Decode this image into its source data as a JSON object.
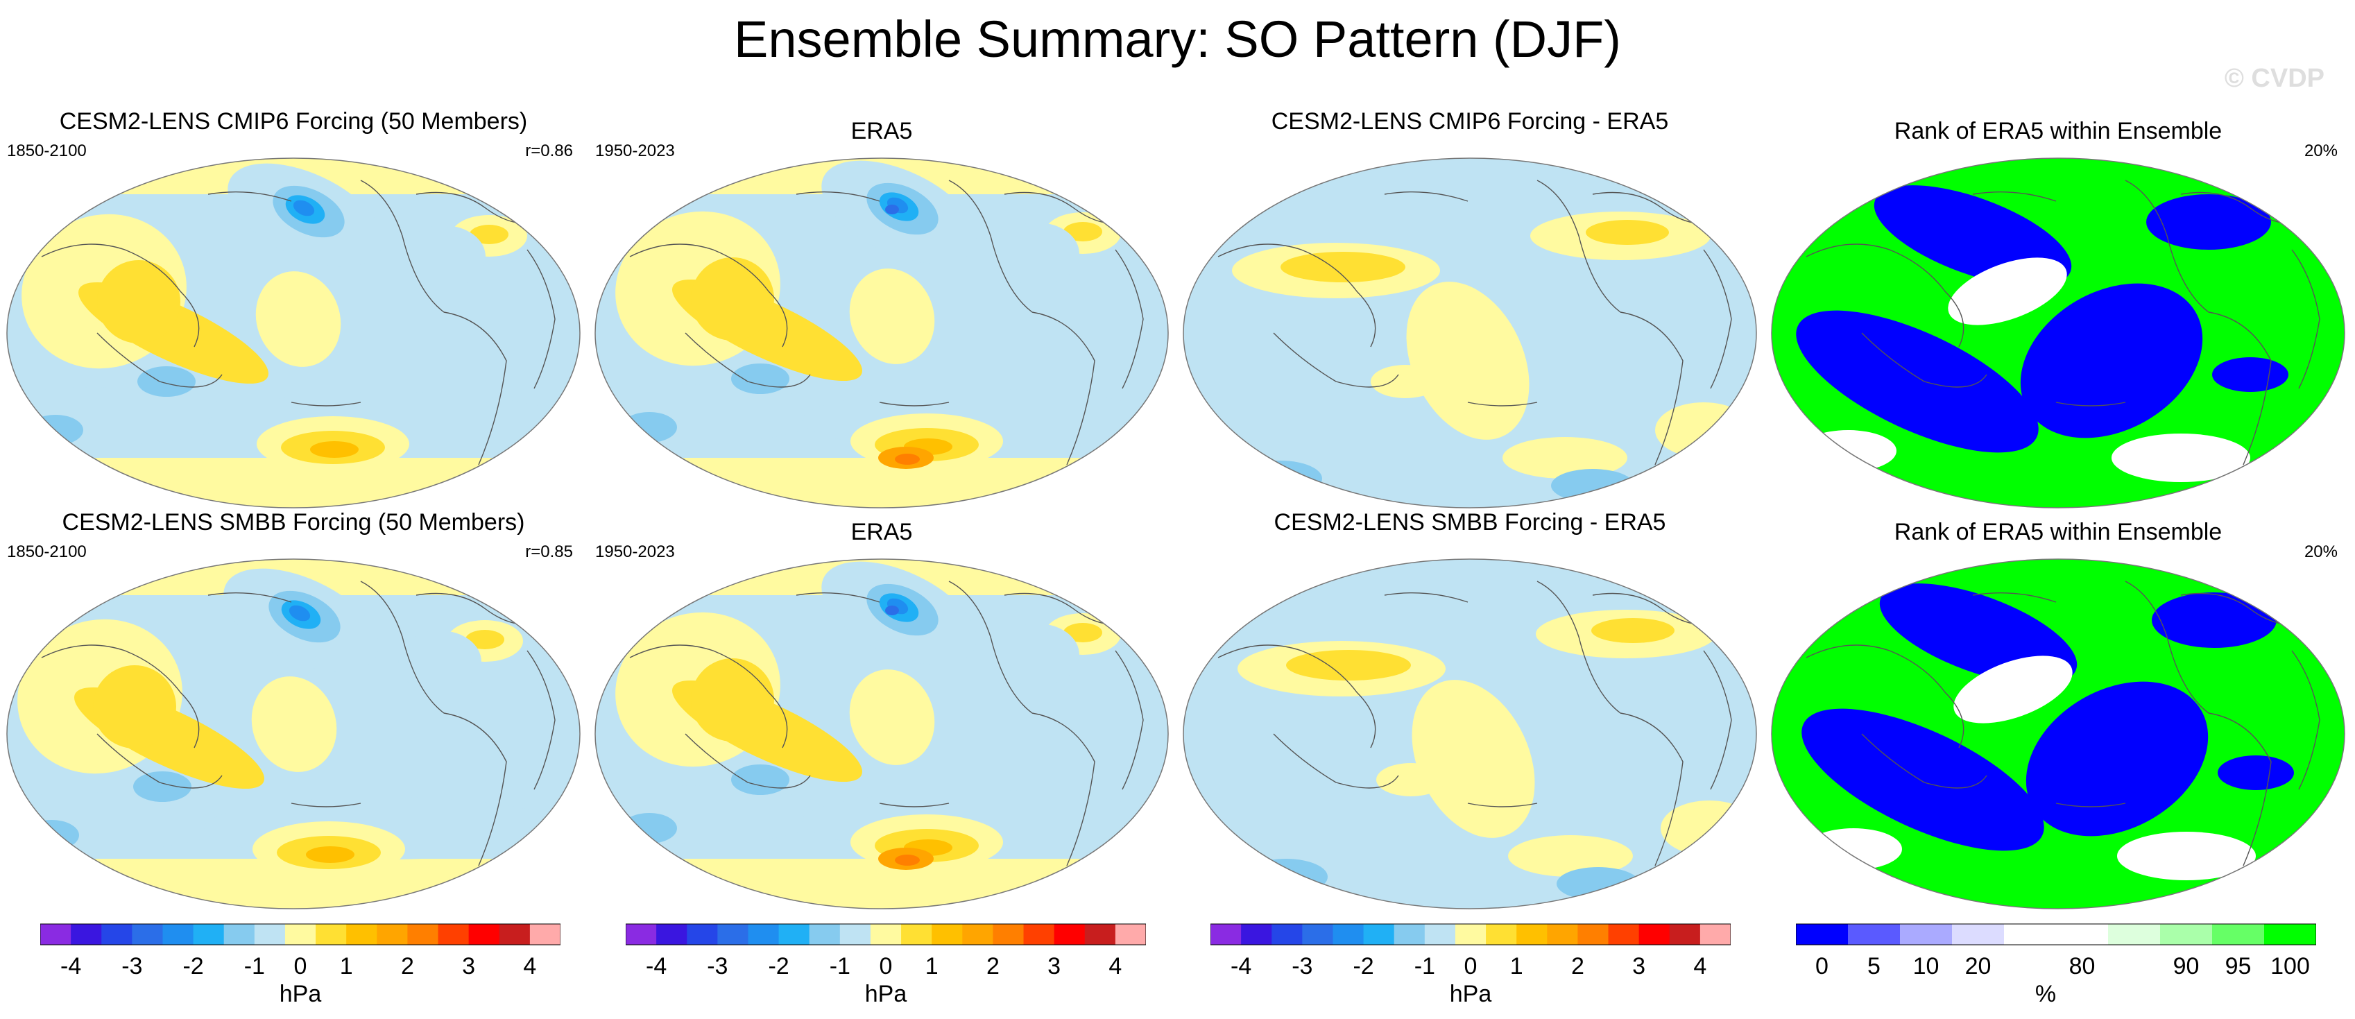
{
  "title": "Ensemble Summary: SO Pattern (DJF)",
  "copyright": "© CVDP",
  "panels": [
    {
      "title": "CESM2-LENS CMIP6 Forcing (50 Members)",
      "left": "1850-2100",
      "right": "r=0.86",
      "kind": "pattern",
      "variant": 1
    },
    {
      "title": "ERA5",
      "left": "1950-2023",
      "right": "",
      "kind": "pattern",
      "variant": 2
    },
    {
      "title": "CESM2-LENS CMIP6 Forcing - ERA5",
      "left": "",
      "right": "",
      "kind": "diff",
      "variant": 1
    },
    {
      "title": "Rank of ERA5 within Ensemble",
      "left": "",
      "right": "20%",
      "kind": "rank",
      "variant": 1
    },
    {
      "title": "CESM2-LENS SMBB Forcing (50 Members)",
      "left": "1850-2100",
      "right": "r=0.85",
      "kind": "pattern",
      "variant": 3
    },
    {
      "title": "ERA5",
      "left": "1950-2023",
      "right": "",
      "kind": "pattern",
      "variant": 2
    },
    {
      "title": "CESM2-LENS SMBB Forcing - ERA5",
      "left": "",
      "right": "",
      "kind": "diff",
      "variant": 2
    },
    {
      "title": "Rank of ERA5 within Ensemble",
      "left": "",
      "right": "20%",
      "kind": "rank",
      "variant": 2
    }
  ],
  "colorbars": {
    "hpa": {
      "colors": [
        "#8a2be2",
        "#3a16e0",
        "#2546e8",
        "#2b6ee8",
        "#1f8ef0",
        "#20b0f5",
        "#86cbef",
        "#bfe3f3",
        "#fffaa0",
        "#ffe033",
        "#ffc000",
        "#ffa500",
        "#ff7f00",
        "#ff4000",
        "#ff0000",
        "#c81e1e",
        "#ffaaaa"
      ],
      "ticks": [
        "-4",
        "-3",
        "-2",
        "-1",
        "0",
        "1",
        "2",
        "3",
        "4"
      ],
      "label": "hPa"
    },
    "rank": {
      "colors": [
        "#0000ff",
        "#5a5aff",
        "#aaaaff",
        "#dcdcff",
        "#ffffff",
        "#ffffff",
        "#ddffdd",
        "#aaffaa",
        "#66ff66",
        "#00ff00"
      ],
      "ticks": [
        "0",
        "5",
        "10",
        "20",
        "80",
        "90",
        "95",
        "100"
      ],
      "label": "%"
    }
  },
  "chart_data": [
    {
      "type": "heatmap",
      "title": "CESM2-LENS CMIP6 Forcing (50 Members)",
      "units": "hPa",
      "period": "1850-2100",
      "pattern_correlation": 0.86,
      "range": [
        -4,
        4
      ]
    },
    {
      "type": "heatmap",
      "title": "ERA5",
      "units": "hPa",
      "period": "1950-2023",
      "range": [
        -4,
        4
      ]
    },
    {
      "type": "heatmap",
      "title": "CESM2-LENS CMIP6 Forcing - ERA5",
      "units": "hPa",
      "range": [
        -4,
        4
      ]
    },
    {
      "type": "heatmap",
      "title": "Rank of ERA5 within Ensemble",
      "units": "%",
      "area_label": "20%",
      "range": [
        0,
        100
      ]
    },
    {
      "type": "heatmap",
      "title": "CESM2-LENS SMBB Forcing (50 Members)",
      "units": "hPa",
      "period": "1850-2100",
      "pattern_correlation": 0.85,
      "range": [
        -4,
        4
      ]
    },
    {
      "type": "heatmap",
      "title": "ERA5",
      "units": "hPa",
      "period": "1950-2023",
      "range": [
        -4,
        4
      ]
    },
    {
      "type": "heatmap",
      "title": "CESM2-LENS SMBB Forcing - ERA5",
      "units": "hPa",
      "range": [
        -4,
        4
      ]
    },
    {
      "type": "heatmap",
      "title": "Rank of ERA5 within Ensemble",
      "units": "%",
      "area_label": "20%",
      "range": [
        0,
        100
      ]
    }
  ]
}
